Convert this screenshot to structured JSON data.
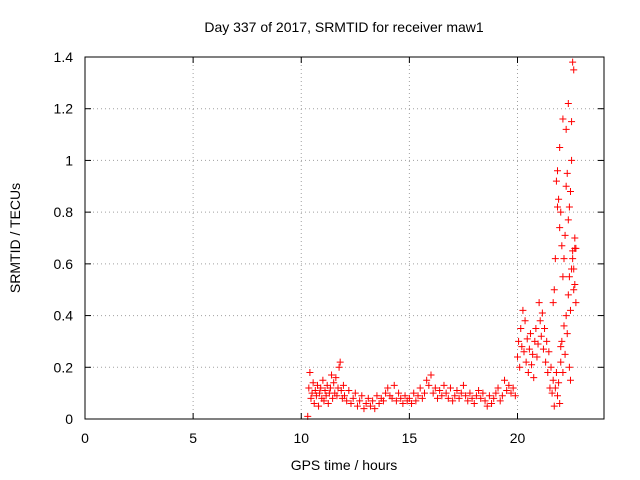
{
  "chart_data": {
    "type": "scatter",
    "title": "Day 337 of 2017, SRMTID for receiver maw1",
    "xlabel": "GPS time / hours",
    "ylabel": "SRMTID / TECUs",
    "xlim": [
      0,
      24
    ],
    "ylim": [
      0,
      1.4
    ],
    "grid": true,
    "marker": "+",
    "marker_color": "#ff0000",
    "x_ticks": [
      0,
      5,
      10,
      15,
      20
    ],
    "x_tick_labels": [
      "0",
      "5",
      "10",
      "15",
      "20"
    ],
    "y_ticks": [
      0,
      0.2,
      0.4,
      0.6,
      0.8,
      1.0,
      1.2,
      1.4
    ],
    "y_tick_labels": [
      "0",
      "0.2",
      "0.4",
      "0.6",
      "0.8",
      "1",
      "1.2",
      "1.4"
    ],
    "x": [
      10.3,
      10.35,
      10.4,
      10.45,
      10.5,
      10.55,
      10.6,
      10.65,
      10.7,
      10.75,
      10.8,
      10.85,
      10.9,
      10.95,
      11.0,
      11.05,
      11.1,
      11.15,
      11.2,
      11.25,
      11.3,
      11.35,
      11.4,
      11.45,
      11.5,
      11.55,
      11.6,
      11.65,
      11.7,
      11.75,
      11.8,
      11.85,
      11.9,
      11.95,
      12.0,
      12.1,
      12.2,
      12.3,
      12.4,
      12.5,
      12.6,
      12.7,
      12.8,
      12.9,
      13.0,
      13.1,
      13.2,
      13.3,
      13.4,
      13.5,
      13.6,
      13.7,
      13.8,
      13.9,
      14.0,
      14.1,
      14.2,
      14.3,
      14.4,
      14.5,
      14.6,
      14.7,
      14.8,
      14.9,
      15.0,
      15.1,
      15.2,
      15.3,
      15.4,
      15.5,
      15.6,
      15.7,
      15.8,
      15.9,
      16.0,
      16.1,
      16.2,
      16.3,
      16.4,
      16.5,
      16.6,
      16.7,
      16.8,
      16.9,
      17.0,
      17.1,
      17.2,
      17.3,
      17.4,
      17.5,
      17.6,
      17.7,
      17.8,
      17.9,
      18.0,
      18.1,
      18.2,
      18.3,
      18.4,
      18.5,
      18.6,
      18.7,
      18.8,
      18.9,
      19.0,
      19.1,
      19.2,
      19.3,
      19.4,
      19.5,
      19.6,
      19.7,
      19.8,
      19.9,
      20.0,
      20.05,
      20.1,
      20.15,
      20.2,
      20.25,
      20.3,
      20.35,
      20.4,
      20.45,
      20.5,
      20.55,
      20.6,
      20.65,
      20.7,
      20.75,
      20.8,
      20.85,
      20.9,
      20.95,
      21.0,
      21.05,
      21.1,
      21.15,
      21.2,
      21.25,
      21.3,
      21.35,
      21.4,
      21.45,
      21.5,
      21.55,
      21.6,
      21.65,
      21.7,
      21.75,
      21.8,
      21.85,
      21.9,
      21.95,
      22.0,
      22.05,
      22.1,
      22.15,
      22.2,
      22.25,
      22.3,
      22.35,
      22.4,
      22.45,
      22.5,
      22.55,
      22.6,
      22.65,
      22.7,
      21.8,
      21.85,
      21.9,
      21.95,
      22.0,
      22.05,
      22.1,
      22.15,
      22.2,
      22.25,
      22.3,
      22.35,
      22.4,
      22.45,
      22.5,
      22.55,
      22.6,
      22.65,
      22.55,
      22.6,
      22.5,
      22.35,
      22.25,
      22.1,
      21.95,
      21.85,
      21.75,
      21.7,
      21.65,
      22.0,
      22.4,
      22.45,
      22.7,
      22.65
    ],
    "y": [
      0.01,
      0.12,
      0.18,
      0.08,
      0.1,
      0.14,
      0.06,
      0.11,
      0.09,
      0.13,
      0.05,
      0.1,
      0.12,
      0.08,
      0.15,
      0.07,
      0.11,
      0.09,
      0.13,
      0.06,
      0.1,
      0.12,
      0.17,
      0.08,
      0.14,
      0.1,
      0.16,
      0.09,
      0.12,
      0.2,
      0.22,
      0.11,
      0.08,
      0.13,
      0.09,
      0.07,
      0.11,
      0.06,
      0.08,
      0.1,
      0.05,
      0.07,
      0.09,
      0.04,
      0.06,
      0.08,
      0.05,
      0.07,
      0.04,
      0.09,
      0.06,
      0.08,
      0.07,
      0.1,
      0.12,
      0.09,
      0.08,
      0.13,
      0.07,
      0.1,
      0.08,
      0.06,
      0.09,
      0.07,
      0.08,
      0.06,
      0.1,
      0.07,
      0.09,
      0.12,
      0.08,
      0.1,
      0.15,
      0.13,
      0.17,
      0.1,
      0.12,
      0.08,
      0.11,
      0.09,
      0.13,
      0.1,
      0.08,
      0.12,
      0.07,
      0.09,
      0.11,
      0.08,
      0.1,
      0.13,
      0.09,
      0.07,
      0.1,
      0.08,
      0.06,
      0.09,
      0.11,
      0.08,
      0.1,
      0.07,
      0.05,
      0.09,
      0.06,
      0.08,
      0.1,
      0.12,
      0.07,
      0.09,
      0.15,
      0.11,
      0.13,
      0.1,
      0.12,
      0.09,
      0.24,
      0.3,
      0.2,
      0.35,
      0.28,
      0.42,
      0.26,
      0.38,
      0.22,
      0.31,
      0.18,
      0.27,
      0.33,
      0.21,
      0.25,
      0.16,
      0.3,
      0.35,
      0.24,
      0.29,
      0.45,
      0.38,
      0.32,
      0.41,
      0.27,
      0.35,
      0.22,
      0.3,
      0.18,
      0.26,
      0.12,
      0.2,
      0.1,
      0.15,
      0.05,
      0.12,
      0.18,
      0.09,
      0.14,
      0.06,
      0.22,
      0.3,
      0.18,
      0.36,
      0.25,
      0.4,
      0.33,
      0.48,
      0.55,
      0.42,
      0.58,
      0.62,
      0.5,
      0.66,
      0.45,
      0.92,
      0.96,
      0.85,
      0.74,
      0.8,
      0.67,
      0.55,
      0.62,
      0.71,
      0.9,
      0.95,
      0.77,
      0.82,
      0.88,
      1.0,
      0.65,
      0.58,
      0.7,
      1.38,
      1.35,
      1.15,
      1.22,
      1.12,
      1.16,
      1.05,
      0.82,
      0.62,
      0.5,
      0.45,
      0.28,
      0.2,
      0.15,
      0.66,
      0.52
    ]
  }
}
